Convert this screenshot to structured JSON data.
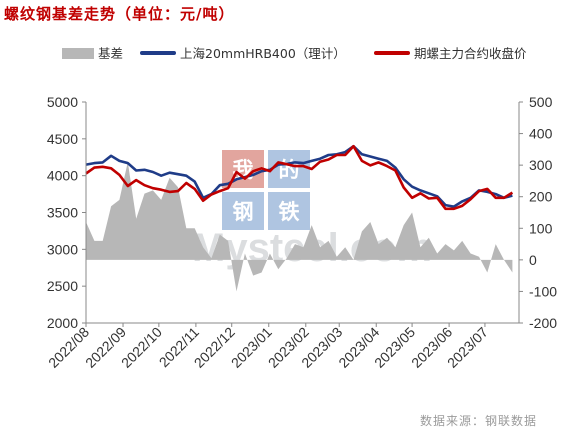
{
  "chart_data": {
    "type": "line",
    "title": "螺纹钢基差走势（单位：元/吨）",
    "source_note": "数据来源：钢联数据",
    "watermark": {
      "text_cn": [
        "我",
        "的",
        "钢",
        "铁"
      ],
      "text_en": "Mysteel.com"
    },
    "x_ticks": [
      "2022/08",
      "2022/09",
      "2022/10",
      "2022/11",
      "2022/12",
      "2023/01",
      "2023/02",
      "2023/03",
      "2023/04",
      "2023/05",
      "2023/06",
      "2023/07"
    ],
    "y_left": {
      "range": [
        2000,
        5000
      ],
      "ticks": [
        5000,
        4500,
        4000,
        3500,
        3000,
        2500,
        2000
      ]
    },
    "y_right": {
      "range": [
        -200,
        500
      ],
      "ticks": [
        500,
        400,
        300,
        200,
        100,
        0,
        -100,
        -200
      ]
    },
    "grid": false,
    "legend_position": "top",
    "series": [
      {
        "name": "基差",
        "type": "area",
        "axis": "right",
        "color": "#b7b7b7",
        "x": [
          "2022/08/01",
          "2022/08/08",
          "2022/08/15",
          "2022/08/22",
          "2022/08/29",
          "2022/09/05",
          "2022/09/12",
          "2022/09/19",
          "2022/09/26",
          "2022/10/03",
          "2022/10/10",
          "2022/10/17",
          "2022/10/24",
          "2022/10/31",
          "2022/11/07",
          "2022/11/14",
          "2022/11/21",
          "2022/11/28",
          "2022/12/05",
          "2022/12/12",
          "2022/12/19",
          "2022/12/26",
          "2023/01/02",
          "2023/01/09",
          "2023/01/16",
          "2023/01/23",
          "2023/01/30",
          "2023/02/06",
          "2023/02/13",
          "2023/02/20",
          "2023/02/27",
          "2023/03/06",
          "2023/03/13",
          "2023/03/20",
          "2023/03/27",
          "2023/04/03",
          "2023/04/10",
          "2023/04/17",
          "2023/04/24",
          "2023/05/01",
          "2023/05/08",
          "2023/05/15",
          "2023/05/22",
          "2023/05/29",
          "2023/06/05",
          "2023/06/12",
          "2023/06/19",
          "2023/06/26",
          "2023/07/03",
          "2023/07/10",
          "2023/07/17",
          "2023/07/24"
        ],
        "values": [
          120,
          60,
          60,
          170,
          190,
          310,
          130,
          210,
          220,
          190,
          260,
          230,
          100,
          100,
          40,
          5,
          80,
          60,
          -100,
          20,
          -50,
          -40,
          20,
          -30,
          5,
          50,
          40,
          110,
          40,
          60,
          10,
          40,
          0,
          90,
          120,
          50,
          70,
          40,
          110,
          150,
          40,
          70,
          20,
          50,
          30,
          60,
          20,
          10,
          -40,
          50,
          0,
          -40
        ]
      },
      {
        "name": "上海20mmHRB400（理计）",
        "type": "line",
        "axis": "left",
        "color": "#1f3c88",
        "x": [
          "2022/08/01",
          "2022/08/08",
          "2022/08/15",
          "2022/08/22",
          "2022/08/29",
          "2022/09/05",
          "2022/09/12",
          "2022/09/19",
          "2022/09/26",
          "2022/10/03",
          "2022/10/10",
          "2022/10/17",
          "2022/10/24",
          "2022/10/31",
          "2022/11/07",
          "2022/11/14",
          "2022/11/21",
          "2022/11/28",
          "2022/12/05",
          "2022/12/12",
          "2022/12/19",
          "2022/12/26",
          "2023/01/02",
          "2023/01/09",
          "2023/01/16",
          "2023/01/23",
          "2023/01/30",
          "2023/02/06",
          "2023/02/13",
          "2023/02/20",
          "2023/02/27",
          "2023/03/06",
          "2023/03/13",
          "2023/03/20",
          "2023/03/27",
          "2023/04/03",
          "2023/04/10",
          "2023/04/17",
          "2023/04/24",
          "2023/05/01",
          "2023/05/08",
          "2023/05/15",
          "2023/05/22",
          "2023/05/29",
          "2023/06/05",
          "2023/06/12",
          "2023/06/19",
          "2023/06/26",
          "2023/07/03",
          "2023/07/10",
          "2023/07/17",
          "2023/07/24"
        ],
        "values": [
          4150,
          4170,
          4180,
          4270,
          4200,
          4170,
          4070,
          4080,
          4050,
          4000,
          4040,
          4020,
          4000,
          3920,
          3700,
          3750,
          3870,
          3890,
          3950,
          3980,
          4010,
          4060,
          4080,
          4150,
          4160,
          4180,
          4170,
          4200,
          4230,
          4280,
          4290,
          4320,
          4400,
          4290,
          4260,
          4230,
          4200,
          4110,
          3950,
          3850,
          3800,
          3760,
          3720,
          3600,
          3580,
          3650,
          3700,
          3800,
          3780,
          3750,
          3700,
          3730
        ]
      },
      {
        "name": "期螺主力合约收盘价",
        "type": "line",
        "axis": "left",
        "color": "#c00000",
        "x": [
          "2022/08/01",
          "2022/08/08",
          "2022/08/15",
          "2022/08/22",
          "2022/08/29",
          "2022/09/05",
          "2022/09/12",
          "2022/09/19",
          "2022/09/26",
          "2022/10/03",
          "2022/10/10",
          "2022/10/17",
          "2022/10/24",
          "2022/10/31",
          "2022/11/07",
          "2022/11/14",
          "2022/11/21",
          "2022/11/28",
          "2022/12/05",
          "2022/12/12",
          "2022/12/19",
          "2022/12/26",
          "2023/01/02",
          "2023/01/09",
          "2023/01/16",
          "2023/01/23",
          "2023/01/30",
          "2023/02/06",
          "2023/02/13",
          "2023/02/20",
          "2023/02/27",
          "2023/03/06",
          "2023/03/13",
          "2023/03/20",
          "2023/03/27",
          "2023/04/03",
          "2023/04/10",
          "2023/04/17",
          "2023/04/24",
          "2023/05/01",
          "2023/05/08",
          "2023/05/15",
          "2023/05/22",
          "2023/05/29",
          "2023/06/05",
          "2023/06/12",
          "2023/06/19",
          "2023/06/26",
          "2023/07/03",
          "2023/07/10",
          "2023/07/17",
          "2023/07/24"
        ],
        "values": [
          4030,
          4110,
          4120,
          4100,
          4010,
          3860,
          3940,
          3870,
          3830,
          3810,
          3780,
          3790,
          3900,
          3820,
          3660,
          3745,
          3790,
          3830,
          4050,
          3960,
          4060,
          4100,
          4060,
          4180,
          4155,
          4130,
          4130,
          4090,
          4190,
          4220,
          4280,
          4280,
          4400,
          4200,
          4140,
          4180,
          4130,
          4070,
          3840,
          3700,
          3760,
          3690,
          3700,
          3550,
          3550,
          3590,
          3680,
          3790,
          3820,
          3700,
          3700,
          3770
        ]
      }
    ]
  }
}
